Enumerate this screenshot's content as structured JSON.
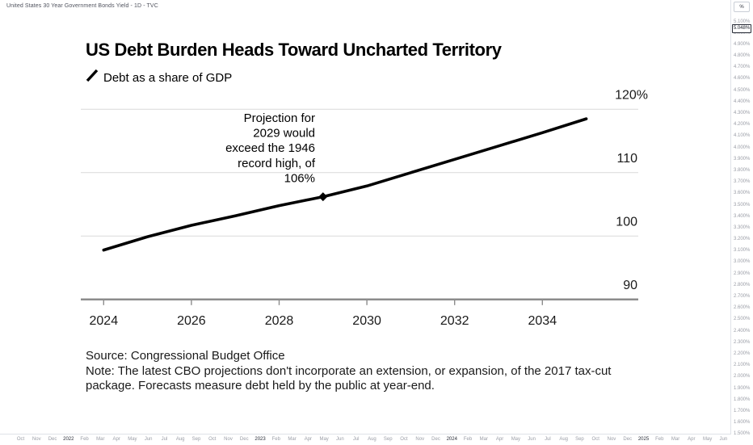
{
  "window": {
    "symbol_line": "United States 30 Year Government Bonds Yield - 1D - TVC"
  },
  "price_scale": {
    "unit_button": "%",
    "current_price": "5.048%",
    "labels": [
      "5.100%",
      "5.000%",
      "4.900%",
      "4.800%",
      "4.700%",
      "4.600%",
      "4.500%",
      "4.400%",
      "4.300%",
      "4.200%",
      "4.100%",
      "4.000%",
      "3.900%",
      "3.800%",
      "3.700%",
      "3.600%",
      "3.500%",
      "3.400%",
      "3.300%",
      "3.200%",
      "3.100%",
      "3.000%",
      "2.900%",
      "2.800%",
      "2.700%",
      "2.600%",
      "2.500%",
      "2.400%",
      "2.300%",
      "2.200%",
      "2.100%",
      "2.000%",
      "1.900%",
      "1.800%",
      "1.700%",
      "1.600%",
      "1.500%"
    ]
  },
  "time_axis": {
    "labels": [
      "Oct",
      "Nov",
      "Dec",
      "2022",
      "Feb",
      "Mar",
      "Apr",
      "May",
      "Jun",
      "Jul",
      "Aug",
      "Sep",
      "Oct",
      "Nov",
      "Dec",
      "2023",
      "Feb",
      "Mar",
      "Apr",
      "May",
      "Jun",
      "Jul",
      "Aug",
      "Sep",
      "Oct",
      "Nov",
      "Dec",
      "2024",
      "Feb",
      "Mar",
      "Apr",
      "May",
      "Jun",
      "Jul",
      "Aug",
      "Sep",
      "Oct",
      "Nov",
      "Dec",
      "2025",
      "Feb",
      "Mar",
      "Apr",
      "May",
      "Jun"
    ]
  },
  "chart_data": {
    "type": "line",
    "title": "US Debt Burden Heads Toward Uncharted Territory",
    "legend": "Debt as a share of GDP",
    "x": [
      2024,
      2025,
      2026,
      2027,
      2028,
      2029,
      2030,
      2031,
      2032,
      2033,
      2034,
      2035
    ],
    "values": [
      97.8,
      99.9,
      101.7,
      103.2,
      104.8,
      106.2,
      107.9,
      110.0,
      112.1,
      114.2,
      116.3,
      118.5
    ],
    "ylim": [
      90,
      120
    ],
    "yticks": [
      {
        "value": 120,
        "label": "120%"
      },
      {
        "value": 110,
        "label": "110"
      },
      {
        "value": 100,
        "label": "100"
      },
      {
        "value": 90,
        "label": "90"
      }
    ],
    "xticks": [
      2024,
      2026,
      2028,
      2030,
      2032,
      2034
    ],
    "grid": true,
    "annotation": {
      "lines": [
        "Projection for",
        "2029 would",
        "exceed the 1946",
        "record high, of",
        "106%"
      ],
      "marker_year": 2029,
      "marker_value": 106.2
    },
    "source": "Source: Congressional Budget Office",
    "note_lines": [
      "Note: The latest CBO projections don't incorporate an extension, or expansion, of the 2017 tax-cut",
      "package. Forecasts measure debt held by the public at year-end."
    ],
    "line_color": "#000000",
    "grid_color": "#d9d9d9",
    "axis_color": "#8c8c8c",
    "text_color": "#1a1a1a"
  }
}
